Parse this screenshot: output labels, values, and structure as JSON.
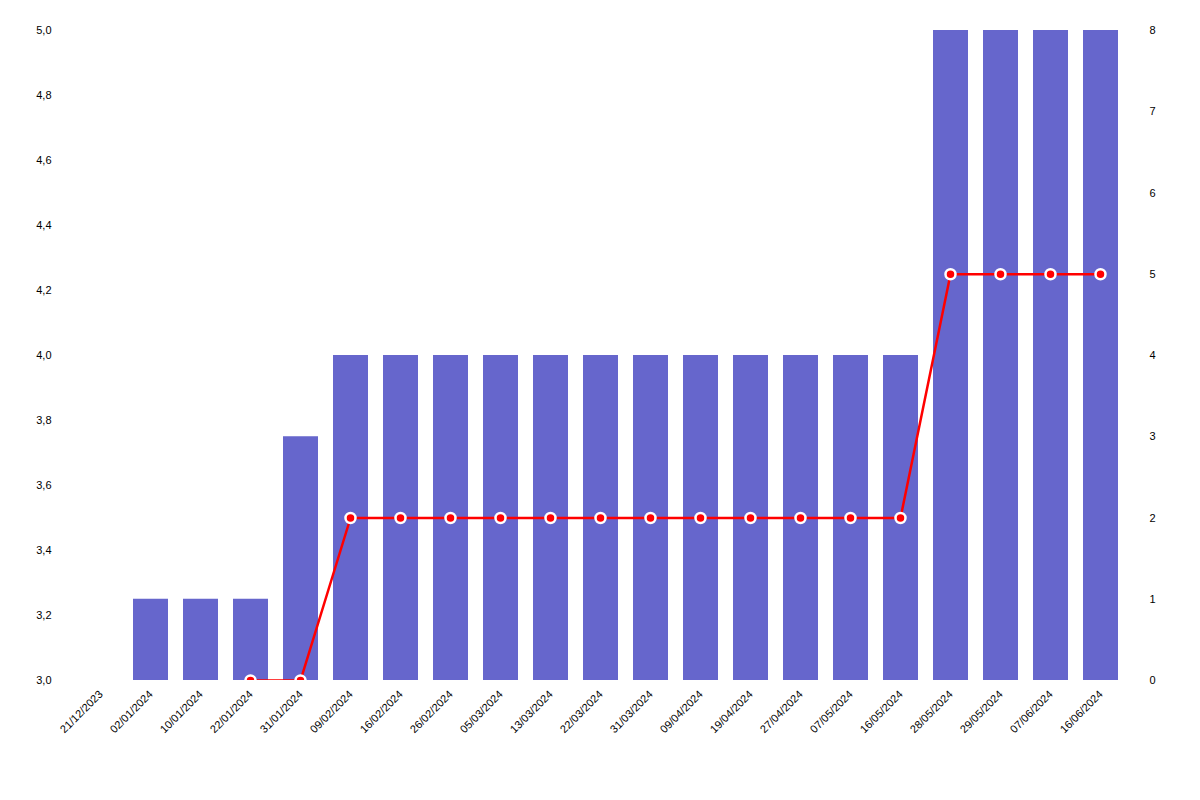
{
  "chart_data": {
    "type": "bar",
    "categories": [
      "21/12/2023",
      "02/01/2024",
      "10/01/2024",
      "22/01/2024",
      "31/01/2024",
      "09/02/2024",
      "16/02/2024",
      "26/02/2024",
      "05/03/2024",
      "13/03/2024",
      "22/03/2024",
      "31/03/2024",
      "09/04/2024",
      "19/04/2024",
      "27/04/2024",
      "07/05/2024",
      "16/05/2024",
      "28/05/2024",
      "29/05/2024",
      "07/06/2024",
      "16/06/2024"
    ],
    "series": [
      {
        "type": "bar",
        "axis": "y2",
        "color": "#6666cc",
        "values": [
          0,
          1,
          1,
          1,
          3,
          4,
          4,
          4,
          4,
          4,
          4,
          4,
          4,
          4,
          4,
          4,
          4,
          8,
          8,
          8,
          8
        ]
      },
      {
        "type": "line",
        "color": "#ff0000",
        "marker": "circle",
        "values": [
          null,
          null,
          null,
          3.0,
          3.0,
          3.5,
          3.5,
          3.5,
          3.5,
          3.5,
          3.5,
          3.5,
          3.5,
          3.5,
          3.5,
          3.5,
          3.5,
          4.25,
          4.25,
          4.25,
          4.25
        ]
      }
    ],
    "ylim": [
      3.0,
      5.0
    ],
    "yticks": [
      {
        "value": 3.0,
        "label": "3,0"
      },
      {
        "value": 3.2,
        "label": "3,2"
      },
      {
        "value": 3.4,
        "label": "3,4"
      },
      {
        "value": 3.6,
        "label": "3,6"
      },
      {
        "value": 3.8,
        "label": "3,8"
      },
      {
        "value": 4.0,
        "label": "4,0"
      },
      {
        "value": 4.2,
        "label": "4,2"
      },
      {
        "value": 4.4,
        "label": "4,4"
      },
      {
        "value": 4.6,
        "label": "4,6"
      },
      {
        "value": 4.8,
        "label": "4,8"
      },
      {
        "value": 5.0,
        "label": "5,0"
      }
    ],
    "y2lim": [
      0,
      8
    ],
    "y2ticks": [
      0,
      1,
      2,
      3,
      4,
      5,
      6,
      7,
      8
    ],
    "grid": false
  }
}
